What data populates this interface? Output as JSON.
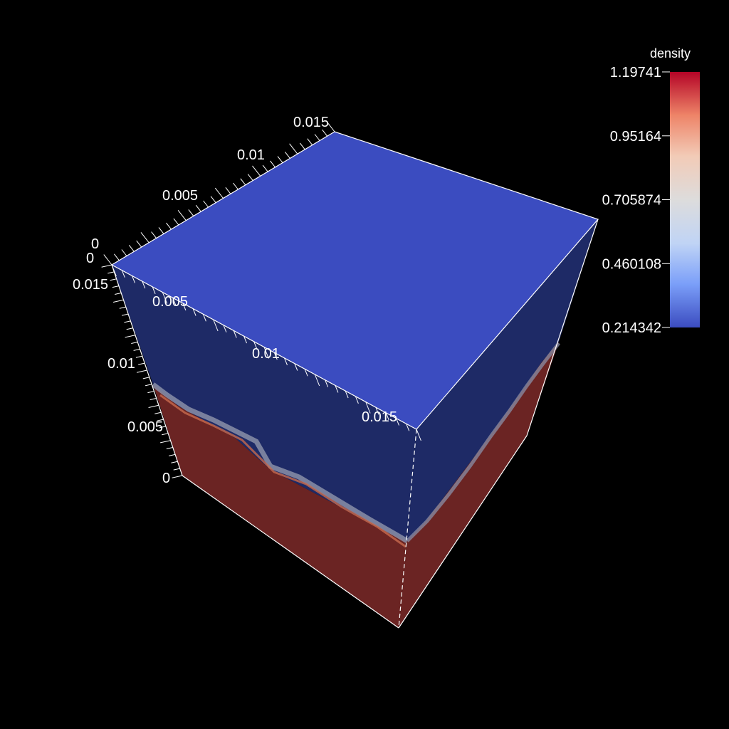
{
  "colorbar": {
    "title": "density",
    "labels": [
      "1.19741",
      "0.95164",
      "0.705874",
      "0.460108",
      "0.214342"
    ],
    "values": [
      1.19741,
      0.95164,
      0.705874,
      0.460108,
      0.214342
    ],
    "range": [
      0.214342,
      1.19741
    ],
    "colormap": [
      "#3b4cc0",
      "#7b9ff9",
      "#c0d4f5",
      "#dddcdc",
      "#f2cbb7",
      "#ee8468",
      "#b40426"
    ]
  },
  "axes": {
    "top_back": {
      "labels": [
        "0",
        "0.005",
        "0.01",
        "0.015"
      ]
    },
    "top_front": {
      "labels": [
        "0",
        "0.005",
        "0.01",
        "0.015"
      ]
    },
    "vertical": {
      "labels": [
        "0",
        "0.005",
        "0.01",
        "0.015"
      ]
    }
  },
  "colors": {
    "background": "#000000",
    "top_face": "#3b4cc0",
    "side_light_phase": "#1e2a66",
    "side_heavy_phase": "#6b2423",
    "interface_mix": "#8a8fa8",
    "edge": "#ffffff"
  }
}
